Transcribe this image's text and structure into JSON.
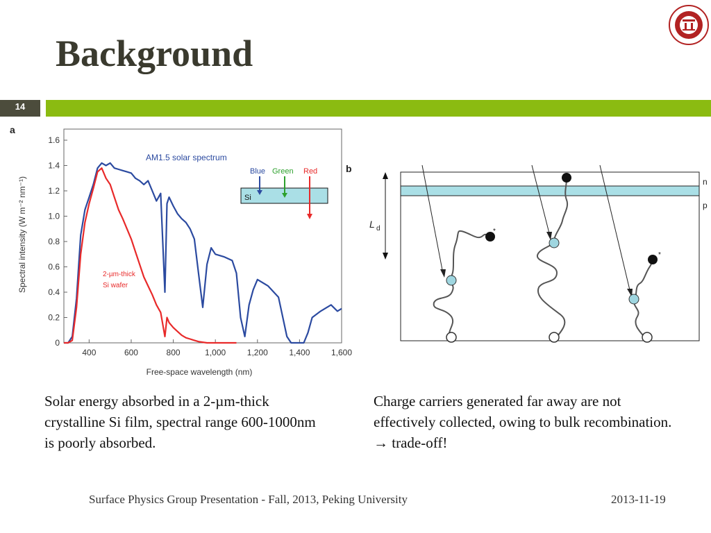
{
  "slide": {
    "title": "Background",
    "number": "14",
    "footer": "Surface Physics Group Presentation - Fall, 2013, Peking University",
    "date": "2013-11-19",
    "caption_left": "Solar energy absorbed in a 2-µm-thick crystalline Si film, spectral range 600-1000nm is poorly absorbed.",
    "caption_right": "Charge carriers generated far away are not effectively collected, owing to bulk recombination. → trade-off!"
  },
  "panel_a": {
    "label": "a"
  },
  "panel_b": {
    "label": "b",
    "ld_label": "L",
    "ld_sub": "d",
    "layer_n": "n",
    "layer_p": "p",
    "star": "*"
  },
  "inset": {
    "blue": "Blue",
    "green": "Green",
    "red": "Red",
    "si": "Si"
  },
  "colors": {
    "blue_series": "#2b4aa0",
    "red_series": "#e82a2a",
    "accent": "#8bbb11",
    "si_layer": "#aadfe6"
  },
  "chart_data": {
    "type": "line",
    "xlabel": "Free-space wavelength (nm)",
    "ylabel": "Spectral intensity (W m⁻² nm⁻¹)",
    "xlim": [
      280,
      1600
    ],
    "ylim": [
      0,
      1.6
    ],
    "xticks": [
      400,
      600,
      800,
      1000,
      1200,
      1400,
      1600
    ],
    "xtick_labels": [
      "400",
      "600",
      "800",
      "1,000",
      "1,200",
      "1,400",
      "1,600"
    ],
    "yticks": [
      0,
      0.2,
      0.4,
      0.6,
      0.8,
      1.0,
      1.2,
      1.4,
      1.6
    ],
    "ytick_labels": [
      "0",
      "0.2",
      "0.4",
      "0.6",
      "0.8",
      "1.0",
      "1.2",
      "1.4",
      "1.6"
    ],
    "grid": false,
    "series": [
      {
        "name": "AM1.5 solar spectrum",
        "color": "#2b4aa0",
        "x": [
          280,
          300,
          320,
          340,
          360,
          380,
          400,
          420,
          440,
          460,
          480,
          500,
          520,
          540,
          560,
          580,
          600,
          620,
          640,
          660,
          680,
          700,
          720,
          740,
          760,
          770,
          780,
          800,
          820,
          840,
          860,
          880,
          900,
          920,
          940,
          960,
          980,
          1000,
          1040,
          1080,
          1100,
          1120,
          1140,
          1160,
          1180,
          1200,
          1250,
          1300,
          1340,
          1360,
          1380,
          1400,
          1420,
          1440,
          1460,
          1500,
          1550,
          1580,
          1600
        ],
        "y": [
          0,
          0,
          0.05,
          0.35,
          0.85,
          1.05,
          1.15,
          1.25,
          1.38,
          1.42,
          1.4,
          1.42,
          1.38,
          1.37,
          1.36,
          1.35,
          1.34,
          1.3,
          1.28,
          1.25,
          1.28,
          1.2,
          1.12,
          1.18,
          0.4,
          1.1,
          1.15,
          1.08,
          1.02,
          0.98,
          0.95,
          0.9,
          0.82,
          0.55,
          0.28,
          0.62,
          0.75,
          0.7,
          0.68,
          0.65,
          0.55,
          0.2,
          0.05,
          0.3,
          0.42,
          0.5,
          0.45,
          0.36,
          0.05,
          0,
          0,
          0,
          0,
          0.08,
          0.2,
          0.25,
          0.3,
          0.25,
          0.27
        ]
      },
      {
        "name": "2-µm-thick Si wafer",
        "color": "#e82a2a",
        "x": [
          280,
          300,
          320,
          340,
          360,
          380,
          400,
          420,
          440,
          460,
          480,
          500,
          520,
          540,
          560,
          580,
          600,
          620,
          640,
          660,
          680,
          700,
          720,
          740,
          760,
          770,
          780,
          800,
          820,
          840,
          860,
          880,
          900,
          920,
          940,
          960,
          980,
          1000,
          1040,
          1080,
          1100
        ],
        "y": [
          0,
          0,
          0.02,
          0.28,
          0.7,
          0.95,
          1.1,
          1.22,
          1.35,
          1.38,
          1.3,
          1.25,
          1.15,
          1.05,
          0.98,
          0.9,
          0.82,
          0.72,
          0.62,
          0.52,
          0.45,
          0.38,
          0.3,
          0.24,
          0.05,
          0.2,
          0.16,
          0.12,
          0.09,
          0.06,
          0.04,
          0.03,
          0.02,
          0.01,
          0.005,
          0,
          0,
          0,
          0,
          0,
          0
        ]
      }
    ],
    "annotations": [
      "AM1.5 solar spectrum",
      "2-µm-thick",
      "Si wafer"
    ]
  }
}
